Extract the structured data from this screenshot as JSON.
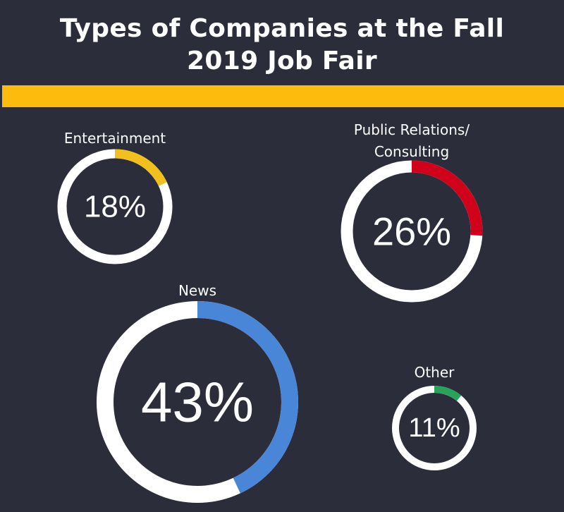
{
  "chart_data": {
    "type": "pie",
    "subtype": "donut-progress-rings",
    "title": "Types of Companies at the Fall 2019 Job Fair",
    "title_lines": [
      "Types of Companies at the Fall",
      "2019 Job Fair"
    ],
    "unit": "%",
    "series": [
      {
        "name": "Entertainment",
        "label_lines": [
          "Entertainment"
        ],
        "value": 18,
        "display": "18%",
        "color": "#f2c01e"
      },
      {
        "name": "Public Relations/ Consulting",
        "label_lines": [
          "Public Relations/",
          "Consulting"
        ],
        "value": 26,
        "display": "26%",
        "color": "#d0021b"
      },
      {
        "name": "News",
        "label_lines": [
          "News"
        ],
        "value": 43,
        "display": "43%",
        "color": "#4a86d8"
      },
      {
        "name": "Other",
        "label_lines": [
          "Other"
        ],
        "value": 11,
        "display": "11%",
        "color": "#27a35a"
      }
    ]
  },
  "colors": {
    "background": "#2b2d3a",
    "accent_bar": "#fdbb0e",
    "ring_track": "#ffffff",
    "text": "#ffffff"
  }
}
